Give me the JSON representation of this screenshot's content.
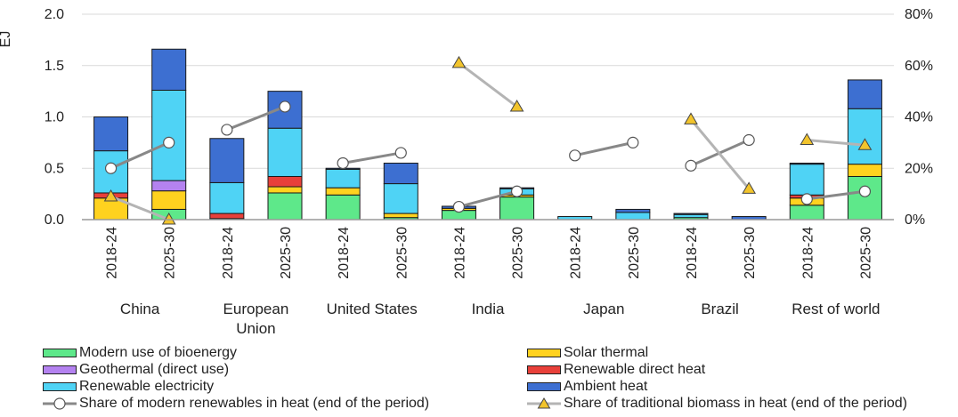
{
  "chart_data": {
    "type": "bar",
    "stacked": true,
    "ylabel": "EJ",
    "ylim": [
      0,
      2.0
    ],
    "yticks": [
      "0.0",
      "0.5",
      "1.0",
      "1.5",
      "2.0"
    ],
    "y2lim": [
      0,
      80
    ],
    "y2ticks": [
      "0%",
      "20%",
      "40%",
      "60%",
      "80%"
    ],
    "grid": "horizontal",
    "legend_position": "bottom",
    "periods": [
      "2018-24",
      "2025-30"
    ],
    "regions": [
      "China",
      "European Union",
      "United States",
      "India",
      "Japan",
      "Brazil",
      "Rest of world"
    ],
    "categories": [
      "China 2018-24",
      "China 2025-30",
      "European Union 2018-24",
      "European Union 2025-30",
      "United States 2018-24",
      "United States 2025-30",
      "India 2018-24",
      "India 2025-30",
      "Japan 2018-24",
      "Japan 2025-30",
      "Brazil 2018-24",
      "Brazil 2025-30",
      "Rest of world 2018-24",
      "Rest of world 2025-30"
    ],
    "series": [
      {
        "name": "Modern use of bioenergy",
        "color": "#5ee88a",
        "values": [
          0.0,
          0.1,
          0.01,
          0.26,
          0.24,
          0.02,
          0.09,
          0.22,
          0.0,
          0.0,
          0.02,
          0.0,
          0.14,
          0.42
        ]
      },
      {
        "name": "Solar thermal",
        "color": "#ffd21f",
        "values": [
          0.21,
          0.18,
          0.0,
          0.06,
          0.07,
          0.04,
          0.02,
          0.02,
          0.0,
          0.0,
          0.0,
          0.0,
          0.07,
          0.12
        ]
      },
      {
        "name": "Geothermal (direct use)",
        "color": "#b482f0",
        "values": [
          0.0,
          0.1,
          0.0,
          0.0,
          0.0,
          0.0,
          0.0,
          0.0,
          0.0,
          0.0,
          0.0,
          0.0,
          0.0,
          0.0
        ]
      },
      {
        "name": "Renewable direct heat",
        "color": "#e8403a",
        "values": [
          0.05,
          0.0,
          0.05,
          0.1,
          0.0,
          0.0,
          0.0,
          0.0,
          0.0,
          0.0,
          0.0,
          0.0,
          0.03,
          0.0
        ]
      },
      {
        "name": "Renewable electricity",
        "color": "#4fd3f5",
        "values": [
          0.41,
          0.88,
          0.3,
          0.47,
          0.18,
          0.29,
          0.0,
          0.06,
          0.03,
          0.07,
          0.03,
          0.0,
          0.3,
          0.54
        ]
      },
      {
        "name": "Ambient heat",
        "color": "#3d6fd1",
        "values": [
          0.33,
          0.4,
          0.43,
          0.36,
          0.01,
          0.2,
          0.02,
          0.01,
          0.0,
          0.03,
          0.01,
          0.03,
          0.01,
          0.28
        ]
      }
    ],
    "lines": [
      {
        "name": "Share of modern renewables in heat (end of the period)",
        "marker": "circle",
        "color": "#888888",
        "values": [
          20,
          30,
          35,
          44,
          22,
          26,
          5,
          11,
          25,
          30,
          21,
          31,
          8,
          11
        ]
      },
      {
        "name": "Share of traditional biomass in heat (end of the period)",
        "marker": "triangle",
        "color": "#b4b4b4",
        "values": [
          9,
          0,
          null,
          null,
          null,
          null,
          61,
          44,
          null,
          null,
          39,
          12,
          31,
          29
        ]
      }
    ]
  },
  "labels": {
    "region_lines": [
      [
        "China"
      ],
      [
        "European",
        "Union"
      ],
      [
        "United States"
      ],
      [
        "India"
      ],
      [
        "Japan"
      ],
      [
        "Brazil"
      ],
      [
        "Rest of world"
      ]
    ]
  },
  "legend": {
    "bioenergy": "Modern use of bioenergy",
    "solar": "Solar thermal",
    "geothermal": "Geothermal (direct use)",
    "direct_heat": "Renewable direct heat",
    "electricity": "Renewable electricity",
    "ambient": "Ambient heat",
    "modern_share": "Share of modern renewables in heat (end of the period)",
    "traditional_share": "Share of traditional biomass in heat (end of the period)"
  }
}
